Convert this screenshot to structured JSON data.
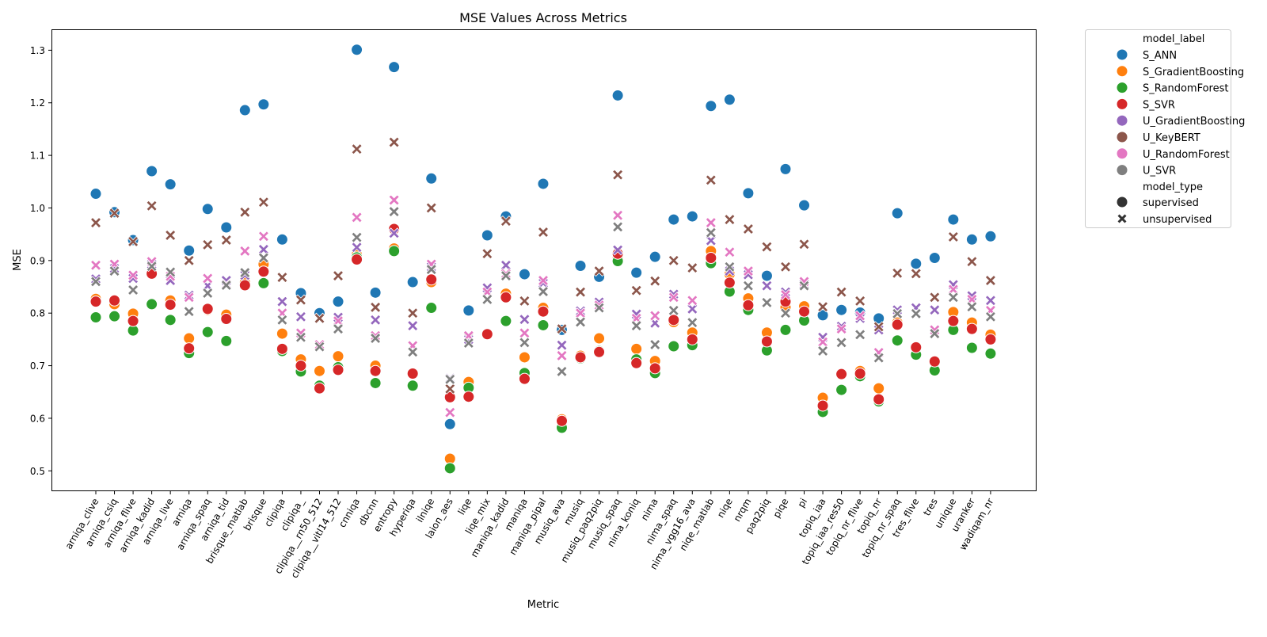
{
  "chart_data": {
    "type": "scatter",
    "title": "MSE Values Across Metrics",
    "xlabel": "Metric",
    "ylabel": "MSE",
    "ylim": [
      0.462,
      1.339
    ],
    "yticks": [
      0.5,
      0.6,
      0.7,
      0.8,
      0.9,
      1.0,
      1.1,
      1.2,
      1.3
    ],
    "grid": false,
    "legend_placement": "outside-top-right",
    "categories": [
      "arniqa_clive",
      "arniqa_csiq",
      "arniqa_flive",
      "arniqa_kadid",
      "arniqa_live",
      "arniqa",
      "arniqa_spaq",
      "arniqa_tid",
      "brisque_matlab",
      "brisque",
      "clipiqa",
      "clipiqa_",
      "clipiqa__rn50_512",
      "clipiqa__vitl14_512",
      "cnniqa",
      "dbcnn",
      "entropy",
      "hyperiqa",
      "ilniqe",
      "laion_aes",
      "liqe",
      "liqe_mix",
      "maniqa_kadid",
      "maniqa",
      "maniqa_pipal",
      "musiq_ava",
      "musiq",
      "musiq_paq2piq",
      "musiq_spaq",
      "nima_koniq",
      "nima",
      "nima_spaq",
      "nima_vgg16_ava",
      "niqe_matlab",
      "niqe",
      "nrqm",
      "paq2piq",
      "piqe",
      "pi",
      "topiq_iaa",
      "topiq_iaa_res50",
      "topiq_nr_flive",
      "topiq_nr",
      "topiq_nr_spaq",
      "tres_flive",
      "tres",
      "unique",
      "uranker",
      "wadiqam_nr"
    ],
    "legend": {
      "hue_title": "model_label",
      "style_title": "model_type",
      "styles": [
        {
          "name": "supervised",
          "marker": "circle"
        },
        {
          "name": "unsupervised",
          "marker": "x"
        }
      ]
    },
    "series": [
      {
        "name": "S_ANN",
        "color": "#1f77b4",
        "marker": "circle",
        "values": [
          1.027,
          0.992,
          0.939,
          1.07,
          1.045,
          0.919,
          0.998,
          0.963,
          1.186,
          1.197,
          0.94,
          0.838,
          0.8,
          0.822,
          1.301,
          0.839,
          1.268,
          0.859,
          1.056,
          0.589,
          0.805,
          0.948,
          0.984,
          0.874,
          1.046,
          0.768,
          0.89,
          0.869,
          1.214,
          0.877,
          0.907,
          0.978,
          0.984,
          1.194,
          1.206,
          1.028,
          0.871,
          1.074,
          1.005,
          0.796,
          0.806,
          0.801,
          0.79,
          0.99,
          0.894,
          0.905,
          0.978,
          0.94,
          0.946
        ]
      },
      {
        "name": "S_GradientBoosting",
        "color": "#ff7f0e",
        "marker": "circle",
        "values": [
          0.827,
          0.817,
          0.799,
          0.878,
          0.824,
          0.752,
          0.806,
          0.797,
          0.858,
          0.893,
          0.761,
          0.712,
          0.69,
          0.718,
          0.911,
          0.7,
          0.923,
          0.685,
          0.859,
          0.523,
          0.669,
          0.761,
          0.837,
          0.716,
          0.81,
          0.598,
          0.719,
          0.752,
          0.904,
          0.732,
          0.709,
          0.783,
          0.763,
          0.918,
          0.874,
          0.828,
          0.763,
          0.811,
          0.813,
          0.639,
          0.685,
          0.69,
          0.657,
          0.782,
          0.735,
          0.709,
          0.802,
          0.782,
          0.759
        ]
      },
      {
        "name": "S_RandomForest",
        "color": "#2ca02c",
        "marker": "circle",
        "values": [
          0.792,
          0.794,
          0.767,
          0.817,
          0.787,
          0.724,
          0.764,
          0.747,
          0.852,
          0.857,
          0.728,
          0.689,
          0.662,
          0.697,
          0.906,
          0.667,
          0.918,
          0.662,
          0.81,
          0.505,
          0.658,
          0.759,
          0.785,
          0.686,
          0.777,
          0.582,
          0.714,
          0.728,
          0.899,
          0.712,
          0.686,
          0.737,
          0.739,
          0.895,
          0.841,
          0.806,
          0.729,
          0.768,
          0.786,
          0.612,
          0.654,
          0.68,
          0.632,
          0.748,
          0.721,
          0.691,
          0.768,
          0.734,
          0.723
        ]
      },
      {
        "name": "S_SVR",
        "color": "#d62728",
        "marker": "circle",
        "values": [
          0.822,
          0.824,
          0.785,
          0.875,
          0.816,
          0.733,
          0.808,
          0.789,
          0.853,
          0.879,
          0.732,
          0.7,
          0.657,
          0.692,
          0.902,
          0.69,
          0.96,
          0.685,
          0.864,
          0.64,
          0.641,
          0.76,
          0.83,
          0.675,
          0.803,
          0.595,
          0.716,
          0.726,
          0.913,
          0.705,
          0.695,
          0.787,
          0.75,
          0.905,
          0.858,
          0.815,
          0.746,
          0.822,
          0.803,
          0.624,
          0.684,
          0.685,
          0.636,
          0.778,
          0.735,
          0.708,
          0.785,
          0.77,
          0.75
        ]
      },
      {
        "name": "U_GradientBoosting",
        "color": "#9467bd",
        "marker": "x",
        "values": [
          0.865,
          0.885,
          0.866,
          0.893,
          0.862,
          0.834,
          0.852,
          0.862,
          0.872,
          0.921,
          0.822,
          0.793,
          0.79,
          0.792,
          0.925,
          0.787,
          0.952,
          0.776,
          0.888,
          0.676,
          0.75,
          0.848,
          0.891,
          0.788,
          0.857,
          0.739,
          0.804,
          0.821,
          0.92,
          0.798,
          0.781,
          0.836,
          0.808,
          0.938,
          0.88,
          0.873,
          0.852,
          0.84,
          0.855,
          0.754,
          0.775,
          0.79,
          0.768,
          0.806,
          0.81,
          0.806,
          0.854,
          0.833,
          0.824
        ]
      },
      {
        "name": "U_KeyBERT",
        "color": "#8c564b",
        "marker": "x",
        "values": [
          0.972,
          0.99,
          0.936,
          1.004,
          0.948,
          0.9,
          0.93,
          0.939,
          0.992,
          1.011,
          0.868,
          0.825,
          0.79,
          0.871,
          1.112,
          0.811,
          1.125,
          0.8,
          1.0,
          0.656,
          0.755,
          0.913,
          0.975,
          0.823,
          0.954,
          0.77,
          0.84,
          0.88,
          1.063,
          0.843,
          0.861,
          0.9,
          0.886,
          1.053,
          0.978,
          0.96,
          0.926,
          0.888,
          0.931,
          0.812,
          0.84,
          0.823,
          0.774,
          0.876,
          0.875,
          0.83,
          0.945,
          0.898,
          0.862
        ]
      },
      {
        "name": "U_RandomForest",
        "color": "#e377c2",
        "marker": "x",
        "values": [
          0.891,
          0.893,
          0.872,
          0.898,
          0.87,
          0.83,
          0.866,
          0.855,
          0.918,
          0.946,
          0.8,
          0.762,
          0.74,
          0.785,
          0.982,
          0.757,
          1.015,
          0.738,
          0.893,
          0.611,
          0.757,
          0.84,
          0.875,
          0.762,
          0.862,
          0.719,
          0.8,
          0.815,
          0.986,
          0.79,
          0.795,
          0.83,
          0.824,
          0.972,
          0.916,
          0.88,
          0.82,
          0.835,
          0.86,
          0.745,
          0.77,
          0.795,
          0.725,
          0.8,
          0.8,
          0.768,
          0.845,
          0.826,
          0.805
        ]
      },
      {
        "name": "U_SVR",
        "color": "#7f7f7f",
        "marker": "x",
        "values": [
          0.86,
          0.88,
          0.844,
          0.889,
          0.878,
          0.803,
          0.838,
          0.853,
          0.877,
          0.905,
          0.787,
          0.754,
          0.736,
          0.77,
          0.944,
          0.752,
          0.993,
          0.726,
          0.883,
          0.674,
          0.743,
          0.826,
          0.871,
          0.744,
          0.841,
          0.689,
          0.783,
          0.81,
          0.964,
          0.776,
          0.74,
          0.805,
          0.782,
          0.953,
          0.888,
          0.852,
          0.82,
          0.8,
          0.852,
          0.728,
          0.744,
          0.759,
          0.715,
          0.799,
          0.799,
          0.761,
          0.83,
          0.812,
          0.793
        ]
      }
    ]
  }
}
